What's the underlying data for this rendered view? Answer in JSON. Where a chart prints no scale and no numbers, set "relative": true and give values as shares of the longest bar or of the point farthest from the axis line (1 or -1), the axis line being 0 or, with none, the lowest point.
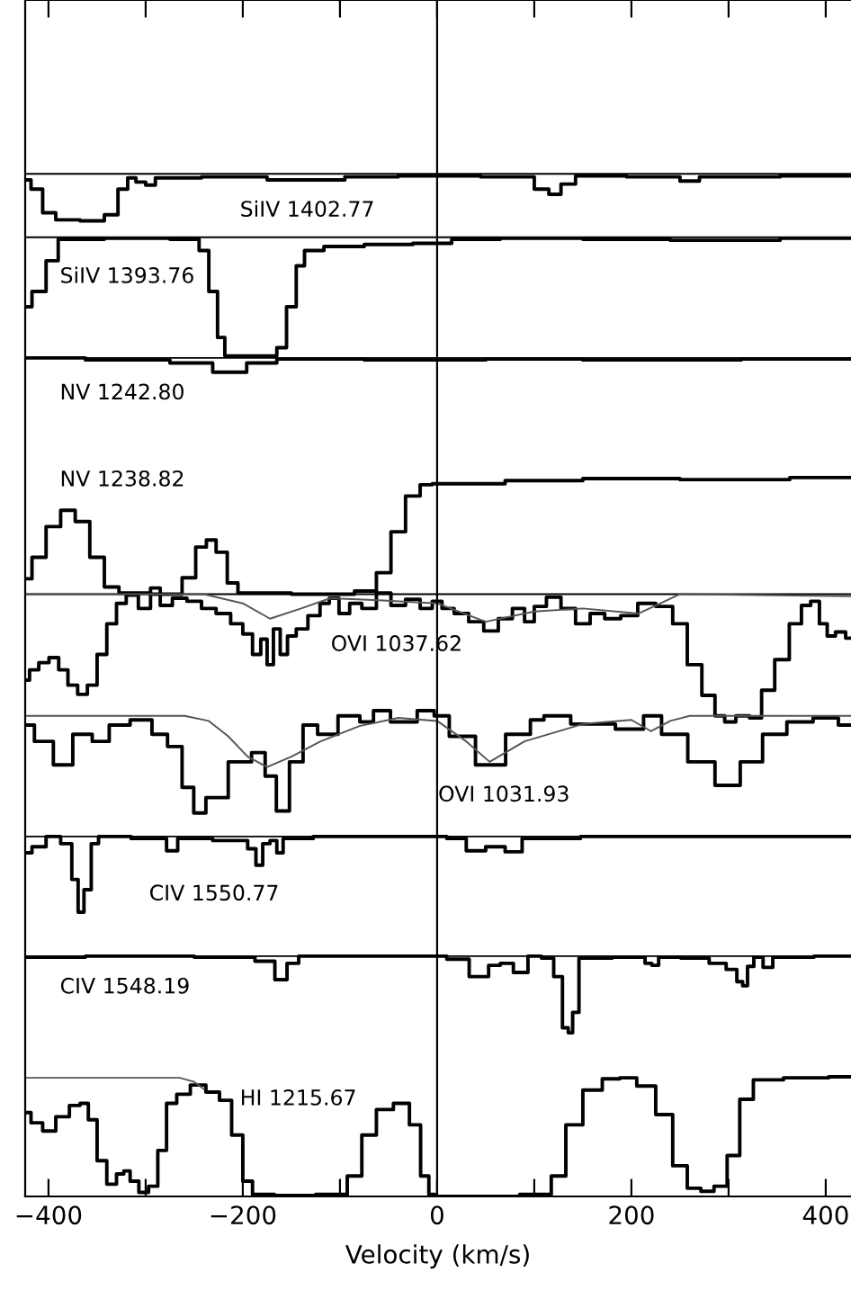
{
  "chart_data": {
    "type": "step",
    "relative": true,
    "xlabel": "Velocity (km/s)",
    "xlim": [
      -424,
      426
    ],
    "xticks": [
      {
        "value": -400,
        "label": "−400"
      },
      {
        "value": -300,
        "label": null
      },
      {
        "value": -200,
        "label": "−200"
      },
      {
        "value": -100,
        "label": null
      },
      0,
      {
        "value": 100,
        "label": null
      },
      200,
      {
        "value": 300,
        "label": null
      },
      400
    ],
    "tick_labels": "x",
    "grid": false,
    "legend": false,
    "ref_lines": [
      {
        "axis": "x",
        "value": 0,
        "color": "#000000"
      }
    ],
    "series": [
      {
        "type": "line",
        "color": "#000000",
        "x": [
          -424,
          426
        ],
        "values": [
          1.0,
          1.0
        ]
      },
      {
        "type": "line",
        "color": "#000000",
        "x": [
          -424,
          426
        ],
        "values": [
          0.938,
          0.938
        ]
      },
      {
        "type": "line",
        "color": "#000000",
        "x": [
          -424,
          426
        ],
        "values": [
          0.82,
          0.82
        ]
      },
      {
        "type": "line",
        "color": "#000000",
        "x": [
          -424,
          426
        ],
        "values": [
          0.589,
          0.589
        ]
      },
      {
        "type": "line",
        "color": "#000000",
        "x": [
          -424,
          426
        ],
        "values": [
          0.352,
          0.352
        ]
      },
      {
        "type": "line",
        "color": "#000000",
        "x": [
          -424,
          426
        ],
        "values": [
          0.235,
          0.235
        ]
      },
      {
        "name": "SiIV 1402.77",
        "color": "#000000",
        "x": [
          -424,
          -412,
          -400,
          -385,
          -350,
          -335,
          -322,
          -315,
          -305,
          -295,
          -285,
          -200,
          -150,
          -110,
          -80,
          0,
          90,
          110,
          120,
          135,
          150,
          240,
          260,
          280,
          426
        ],
        "values": [
          0.994,
          0.985,
          0.962,
          0.955,
          0.954,
          0.96,
          0.985,
          0.996,
          0.992,
          0.989,
          0.996,
          0.997,
          0.994,
          0.994,
          0.997,
          0.998,
          0.997,
          0.985,
          0.98,
          0.99,
          0.998,
          0.997,
          0.993,
          0.997,
          0.998
        ]
      },
      {
        "name": "SiIV 1393.76",
        "color": "#000000",
        "x": [
          -424,
          -410,
          -395,
          -385,
          -300,
          -250,
          -240,
          -230,
          -222,
          -215,
          -170,
          -160,
          -150,
          -140,
          -133,
          -100,
          -50,
          0,
          30,
          100,
          200,
          280,
          426
        ],
        "values": [
          0.87,
          0.885,
          0.915,
          0.936,
          0.937,
          0.936,
          0.925,
          0.885,
          0.84,
          0.822,
          0.822,
          0.83,
          0.87,
          0.91,
          0.925,
          0.929,
          0.931,
          0.932,
          0.936,
          0.937,
          0.936,
          0.935,
          0.937
        ]
      },
      {
        "name": "NV 1242.80",
        "color": "#000000",
        "x": [
          -424,
          -300,
          -250,
          -212,
          -180,
          -150,
          0,
          100,
          200,
          426
        ],
        "values": [
          0.82,
          0.818,
          0.815,
          0.806,
          0.815,
          0.819,
          0.818,
          0.819,
          0.818,
          0.819
        ]
      },
      {
        "name": "NV 1238.82",
        "color": "#000000",
        "x": [
          -424,
          -410,
          -395,
          -380,
          -365,
          -350,
          -335,
          -320,
          -270,
          -255,
          -242,
          -233,
          -222,
          -210,
          -200,
          -100,
          -70,
          -55,
          -40,
          -25,
          -10,
          0,
          40,
          100,
          200,
          300,
          426
        ],
        "values": [
          0.604,
          0.625,
          0.655,
          0.671,
          0.66,
          0.625,
          0.596,
          0.59,
          0.589,
          0.605,
          0.635,
          0.642,
          0.63,
          0.6,
          0.59,
          0.589,
          0.592,
          0.61,
          0.65,
          0.685,
          0.696,
          0.697,
          0.697,
          0.7,
          0.702,
          0.701,
          0.703
        ]
      },
      {
        "name": "OVI 1037.62",
        "color": "#000000",
        "x": [
          -424,
          -415,
          -405,
          -394,
          -385,
          -375,
          -365,
          -355,
          -345,
          -335,
          -325,
          -315,
          -300,
          -290,
          -280,
          -265,
          -250,
          -235,
          -220,
          -205,
          -195,
          -185,
          -178,
          -172,
          -165,
          -158,
          -150,
          -140,
          -126,
          -115,
          -107,
          -95,
          -85,
          -70,
          -55,
          -40,
          -25,
          -10,
          0,
          10,
          25,
          40,
          56,
          70,
          85,
          95,
          105,
          120,
          135,
          150,
          165,
          180,
          198,
          215,
          235,
          250,
          265,
          280,
          292,
          300,
          315,
          328,
          340,
          355,
          370,
          380,
          389,
          398,
          405,
          415,
          426
        ],
        "values": [
          0.505,
          0.515,
          0.522,
          0.527,
          0.515,
          0.5,
          0.491,
          0.5,
          0.53,
          0.56,
          0.58,
          0.588,
          0.575,
          0.595,
          0.578,
          0.585,
          0.582,
          0.575,
          0.57,
          0.56,
          0.55,
          0.53,
          0.545,
          0.52,
          0.555,
          0.53,
          0.548,
          0.555,
          0.568,
          0.58,
          0.585,
          0.57,
          0.58,
          0.575,
          0.59,
          0.578,
          0.584,
          0.575,
          0.582,
          0.575,
          0.57,
          0.562,
          0.553,
          0.565,
          0.575,
          0.562,
          0.577,
          0.586,
          0.575,
          0.56,
          0.57,
          0.565,
          0.568,
          0.58,
          0.577,
          0.56,
          0.52,
          0.49,
          0.47,
          0.464,
          0.47,
          0.468,
          0.495,
          0.525,
          0.56,
          0.578,
          0.582,
          0.56,
          0.548,
          0.552,
          0.546
        ]
      },
      {
        "type": "line",
        "color": "#555555",
        "x": [
          -424,
          -240,
          -200,
          -172,
          -140,
          -110,
          -60,
          0,
          50,
          100,
          150,
          207,
          230,
          250,
          426
        ],
        "values": [
          0.589,
          0.589,
          0.58,
          0.565,
          0.575,
          0.585,
          0.583,
          0.58,
          0.562,
          0.572,
          0.575,
          0.57,
          0.58,
          0.589,
          0.587
        ]
      },
      {
        "name": "OVI 1031.93",
        "color": "#000000",
        "x": [
          -424,
          -405,
          -385,
          -365,
          -345,
          -330,
          -302,
          -285,
          -270,
          -255,
          -246,
          -230,
          -200,
          -182,
          -172,
          -159,
          -145,
          -131,
          -115,
          -89,
          -70,
          -61,
          -35,
          -6,
          0,
          25,
          54,
          87,
          105,
          115,
          160,
          207,
          218,
          244,
          272,
          300,
          324,
          346,
          374,
          400,
          426
        ],
        "values": [
          0.461,
          0.445,
          0.422,
          0.452,
          0.445,
          0.461,
          0.466,
          0.452,
          0.44,
          0.4,
          0.375,
          0.39,
          0.425,
          0.434,
          0.411,
          0.377,
          0.425,
          0.461,
          0.452,
          0.47,
          0.464,
          0.475,
          0.464,
          0.475,
          0.47,
          0.45,
          0.422,
          0.452,
          0.466,
          0.47,
          0.462,
          0.457,
          0.47,
          0.452,
          0.425,
          0.402,
          0.425,
          0.452,
          0.464,
          0.468,
          0.461
        ]
      },
      {
        "type": "line",
        "color": "#555555",
        "x": [
          -424,
          -260,
          -235,
          -215,
          -195,
          -175,
          -150,
          -120,
          -80,
          -40,
          0,
          30,
          54,
          90,
          150,
          200,
          220,
          240,
          260,
          426
        ],
        "values": [
          0.47,
          0.47,
          0.465,
          0.45,
          0.43,
          0.42,
          0.43,
          0.445,
          0.46,
          0.468,
          0.465,
          0.445,
          0.425,
          0.445,
          0.462,
          0.466,
          0.455,
          0.465,
          0.47,
          0.47
        ]
      },
      {
        "name": "CIV 1550.77",
        "color": "#000000",
        "x": [
          -424,
          -410,
          -395,
          -380,
          -372,
          -367,
          -360,
          -352,
          -345,
          -285,
          -272,
          -262,
          -200,
          -190,
          -183,
          -176,
          -168,
          -162,
          -155,
          -100,
          0,
          20,
          40,
          60,
          80,
          95,
          200,
          426
        ],
        "values": [
          0.336,
          0.342,
          0.352,
          0.345,
          0.31,
          0.278,
          0.3,
          0.345,
          0.352,
          0.35,
          0.338,
          0.35,
          0.348,
          0.34,
          0.324,
          0.345,
          0.348,
          0.336,
          0.35,
          0.352,
          0.352,
          0.35,
          0.338,
          0.342,
          0.337,
          0.35,
          0.352,
          0.352
        ]
      },
      {
        "name": "CIV 1548.19",
        "color": "#000000",
        "x": [
          -424,
          -300,
          -200,
          -175,
          -159,
          -150,
          -135,
          0,
          20,
          46,
          60,
          70,
          87,
          100,
          115,
          125,
          133,
          137,
          142,
          150,
          210,
          218,
          224,
          232,
          270,
          290,
          305,
          312,
          317,
          322,
          330,
          341,
          350,
          426
        ],
        "values": [
          0.234,
          0.235,
          0.234,
          0.23,
          0.212,
          0.228,
          0.235,
          0.235,
          0.232,
          0.215,
          0.226,
          0.228,
          0.219,
          0.235,
          0.233,
          0.215,
          0.165,
          0.16,
          0.18,
          0.233,
          0.234,
          0.228,
          0.226,
          0.234,
          0.233,
          0.228,
          0.222,
          0.21,
          0.206,
          0.225,
          0.234,
          0.224,
          0.234,
          0.235
        ]
      },
      {
        "name": "HI 1215.67",
        "color": "#000000",
        "x": [
          -424,
          -412,
          -400,
          -385,
          -372,
          -363,
          -355,
          -345,
          -335,
          -325,
          -320,
          -312,
          -302,
          -292,
          -283,
          -274,
          -262,
          -246,
          -230,
          -218,
          -205,
          -195,
          -185,
          -150,
          -100,
          -85,
          -70,
          -55,
          -35,
          -22,
          -12,
          -5,
          0,
          60,
          110,
          125,
          140,
          160,
          180,
          196,
          215,
          235,
          250,
          265,
          278,
          292,
          305,
          318,
          333,
          380,
          426
        ],
        "values": [
          0.082,
          0.072,
          0.064,
          0.078,
          0.089,
          0.091,
          0.075,
          0.035,
          0.012,
          0.022,
          0.025,
          0.015,
          0.004,
          0.01,
          0.045,
          0.091,
          0.1,
          0.109,
          0.102,
          0.094,
          0.06,
          0.015,
          0.002,
          0.001,
          0.002,
          0.02,
          0.06,
          0.085,
          0.091,
          0.07,
          0.02,
          0.002,
          0.0,
          0.0,
          0.002,
          0.02,
          0.07,
          0.104,
          0.115,
          0.116,
          0.108,
          0.08,
          0.03,
          0.008,
          0.005,
          0.01,
          0.04,
          0.095,
          0.114,
          0.116,
          0.117
        ]
      },
      {
        "type": "line",
        "color": "#555555",
        "x": [
          -424,
          -265,
          -250,
          -240
        ],
        "values": [
          0.116,
          0.116,
          0.112,
          0.105
        ]
      }
    ]
  }
}
